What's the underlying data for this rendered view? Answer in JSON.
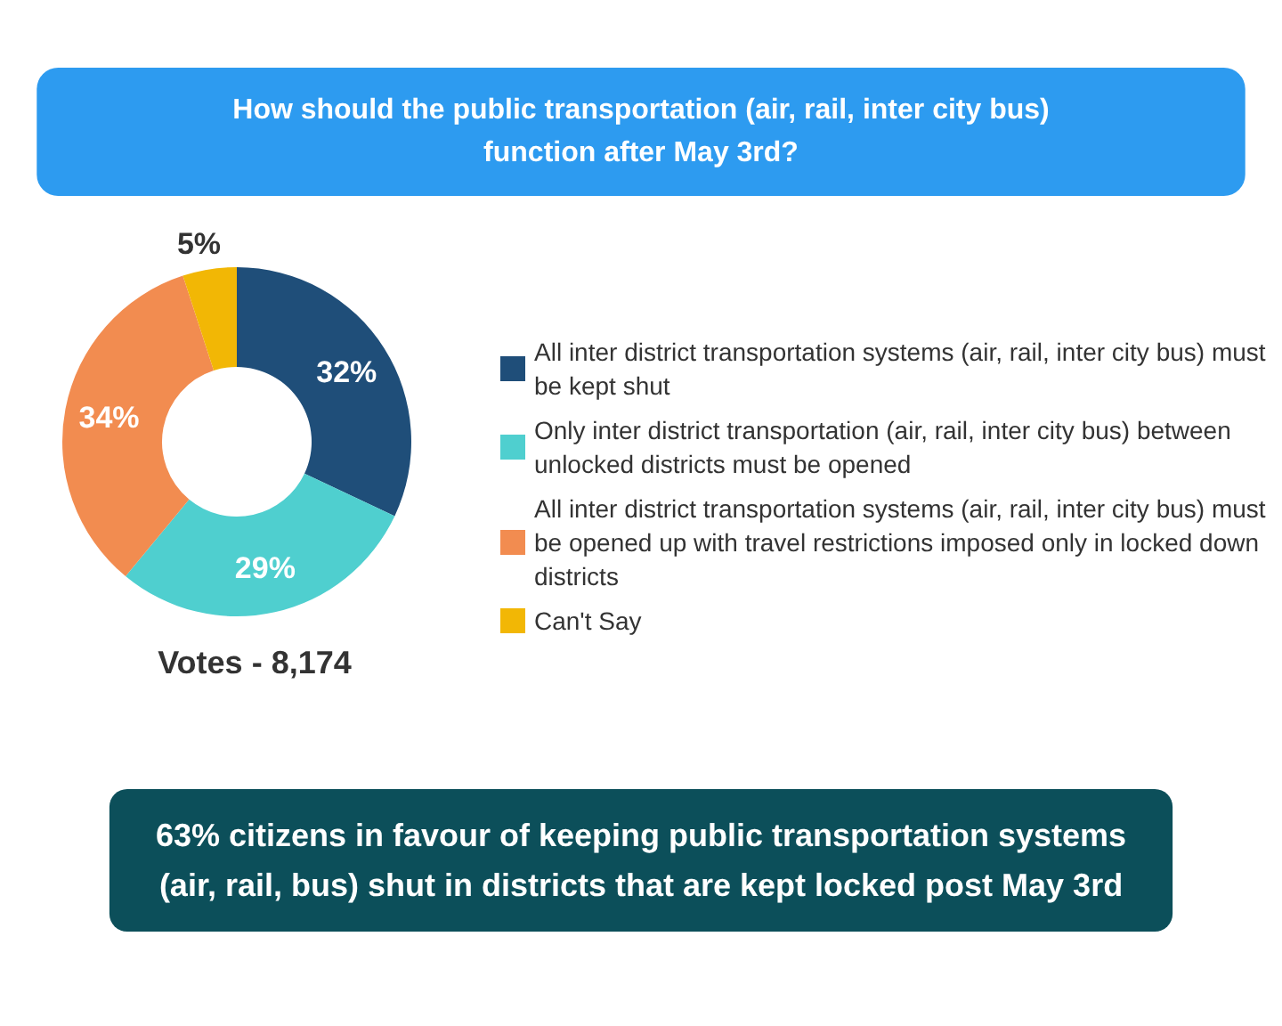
{
  "chart_data": {
    "type": "donut",
    "title": "How should the public transportation (air, rail, inter city bus)\nfunction after May 3rd?",
    "categories": [
      "All inter district transportation systems (air, rail, inter city bus) must be kept shut",
      "Only inter district transportation (air, rail, inter city bus) between unlocked districts must be opened",
      "All inter district transportation systems (air, rail, inter city bus) must be opened up with travel restrictions imposed only in locked down districts",
      "Can't Say"
    ],
    "values": [
      32,
      29,
      34,
      5
    ],
    "colors": [
      "#1f4e79",
      "#4fcfcf",
      "#f28c50",
      "#f2b705"
    ],
    "value_labels": [
      "32%",
      "29%",
      "34%",
      "5%"
    ],
    "legend": "right",
    "annotations": [
      "Votes - 8,174",
      "63% citizens in favour of keeping public transportation systems\n(air, rail, bus) shut in districts that are kept locked post May 3rd"
    ]
  }
}
